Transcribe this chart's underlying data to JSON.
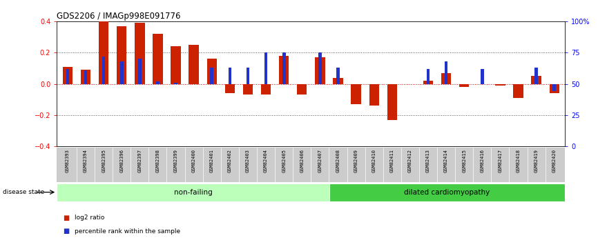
{
  "title": "GDS2206 / IMAGp998E091776",
  "samples": [
    "GSM82393",
    "GSM82394",
    "GSM82395",
    "GSM82396",
    "GSM82397",
    "GSM82398",
    "GSM82399",
    "GSM82400",
    "GSM82401",
    "GSM82402",
    "GSM82403",
    "GSM82404",
    "GSM82405",
    "GSM82406",
    "GSM82407",
    "GSM82408",
    "GSM82409",
    "GSM82410",
    "GSM82411",
    "GSM82412",
    "GSM82413",
    "GSM82414",
    "GSM82415",
    "GSM82416",
    "GSM82417",
    "GSM82418",
    "GSM82419",
    "GSM82420"
  ],
  "log2_ratio": [
    0.11,
    0.09,
    0.4,
    0.37,
    0.39,
    0.32,
    0.24,
    0.25,
    0.16,
    -0.06,
    -0.07,
    -0.07,
    0.18,
    -0.07,
    0.17,
    0.04,
    -0.13,
    -0.14,
    -0.23,
    0.0,
    0.02,
    0.07,
    -0.02,
    0.0,
    -0.01,
    -0.09,
    0.05,
    -0.06
  ],
  "percentile_rank": [
    62,
    61,
    72,
    68,
    70,
    52,
    51,
    50,
    63,
    63,
    63,
    75,
    75,
    50,
    75,
    63,
    50,
    50,
    50,
    50,
    62,
    68,
    50,
    62,
    50,
    50,
    63,
    44
  ],
  "non_failing_count": 15,
  "dilated_count": 13,
  "ylim": [
    -0.4,
    0.4
  ],
  "yticks_left": [
    -0.4,
    -0.2,
    0.0,
    0.2,
    0.4
  ],
  "yticks_right": [
    0,
    25,
    50,
    75,
    100
  ],
  "ytick_labels_right": [
    "0",
    "25",
    "50",
    "75",
    "100%"
  ],
  "bar_color_red": "#cc2200",
  "bar_color_blue": "#2233cc",
  "dotted_line_color": "#555555",
  "zero_line_color": "#cc0000",
  "non_failing_color": "#bbffbb",
  "dilated_color": "#44cc44",
  "label_bg_color": "#cccccc",
  "legend_red": "log2 ratio",
  "legend_blue": "percentile rank within the sample",
  "fig_width": 8.66,
  "fig_height": 3.45,
  "dpi": 100
}
